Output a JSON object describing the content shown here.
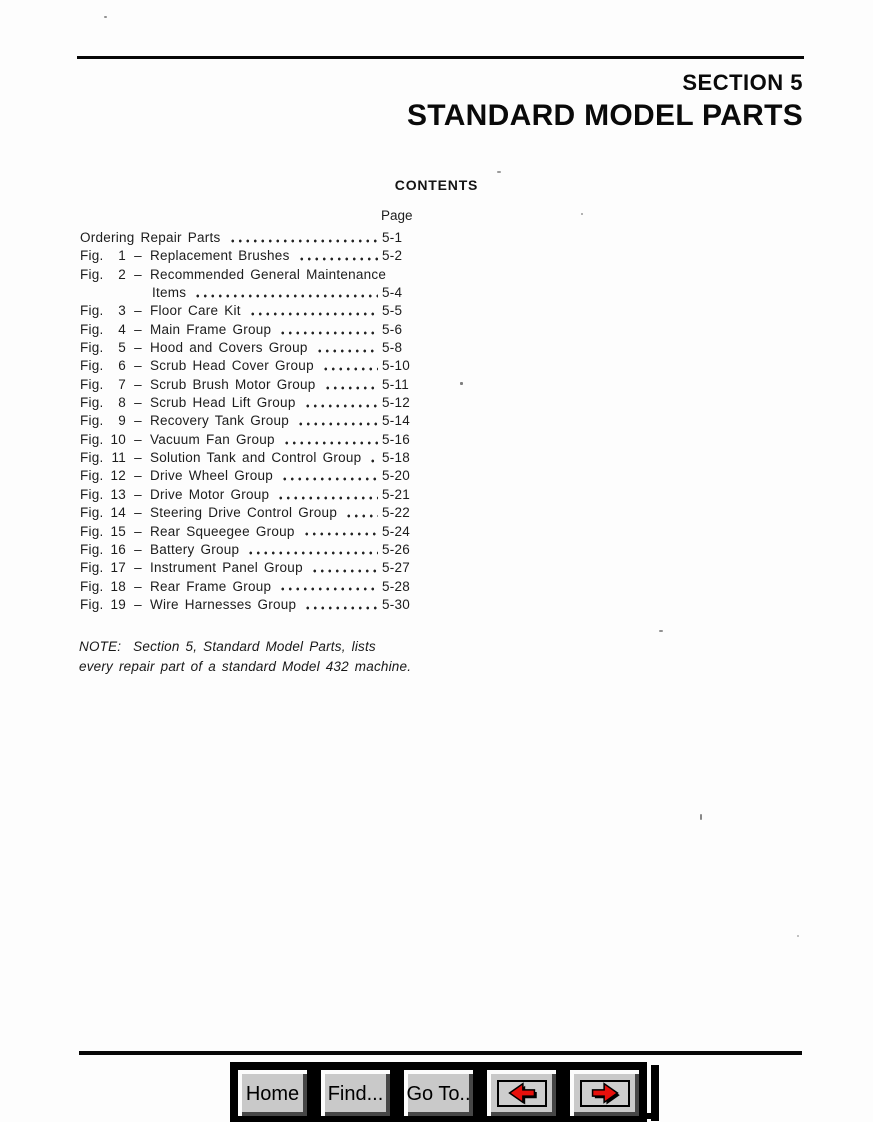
{
  "header": {
    "section": "SECTION 5",
    "title": "STANDARD MODEL PARTS"
  },
  "contents": {
    "heading": "CONTENTS",
    "page_column_label": "Page"
  },
  "toc": {
    "entries": [
      {
        "prefix": "",
        "num": "",
        "dash": "",
        "title": "Ordering Repair Parts",
        "page": "5-1",
        "leader": true,
        "indent": false
      },
      {
        "prefix": "Fig.",
        "num": "1",
        "dash": "–",
        "title": "Replacement Brushes",
        "page": "5-2",
        "leader": true,
        "indent": false
      },
      {
        "prefix": "Fig.",
        "num": "2",
        "dash": "–",
        "title": "Recommended General Maintenance",
        "page": "",
        "leader": false,
        "indent": false
      },
      {
        "prefix": "",
        "num": "",
        "dash": "",
        "title": "Items",
        "page": "5-4",
        "leader": true,
        "indent": true
      },
      {
        "prefix": "Fig.",
        "num": "3",
        "dash": "–",
        "title": "Floor Care Kit",
        "page": "5-5",
        "leader": true,
        "indent": false
      },
      {
        "prefix": "Fig.",
        "num": "4",
        "dash": "–",
        "title": "Main Frame Group",
        "page": "5-6",
        "leader": true,
        "indent": false
      },
      {
        "prefix": "Fig.",
        "num": "5",
        "dash": "–",
        "title": "Hood and Covers Group",
        "page": "5-8",
        "leader": true,
        "indent": false
      },
      {
        "prefix": "Fig.",
        "num": "6",
        "dash": "–",
        "title": "Scrub Head Cover Group",
        "page": "5-10",
        "leader": true,
        "indent": false
      },
      {
        "prefix": "Fig.",
        "num": "7",
        "dash": "–",
        "title": "Scrub Brush Motor Group",
        "page": "5-11",
        "leader": true,
        "indent": false
      },
      {
        "prefix": "Fig.",
        "num": "8",
        "dash": "–",
        "title": "Scrub Head Lift Group",
        "page": "5-12",
        "leader": true,
        "indent": false
      },
      {
        "prefix": "Fig.",
        "num": "9",
        "dash": "–",
        "title": "Recovery Tank Group",
        "page": "5-14",
        "leader": true,
        "indent": false
      },
      {
        "prefix": "Fig.",
        "num": "10",
        "dash": "–",
        "title": "Vacuum Fan Group",
        "page": "5-16",
        "leader": true,
        "indent": false
      },
      {
        "prefix": "Fig.",
        "num": "11",
        "dash": "–",
        "title": "Solution Tank and Control Group",
        "page": "5-18",
        "leader": true,
        "indent": false
      },
      {
        "prefix": "Fig.",
        "num": "12",
        "dash": "–",
        "title": "Drive Wheel Group",
        "page": "5-20",
        "leader": true,
        "indent": false
      },
      {
        "prefix": "Fig.",
        "num": "13",
        "dash": "–",
        "title": "Drive Motor Group",
        "page": "5-21",
        "leader": true,
        "indent": false
      },
      {
        "prefix": "Fig.",
        "num": "14",
        "dash": "–",
        "title": "Steering Drive Control Group",
        "page": "5-22",
        "leader": true,
        "indent": false
      },
      {
        "prefix": "Fig.",
        "num": "15",
        "dash": "–",
        "title": "Rear Squeegee Group",
        "page": "5-24",
        "leader": true,
        "indent": false
      },
      {
        "prefix": "Fig.",
        "num": "16",
        "dash": "–",
        "title": "Battery Group",
        "page": "5-26",
        "leader": true,
        "indent": false
      },
      {
        "prefix": "Fig.",
        "num": "17",
        "dash": "–",
        "title": "Instrument Panel Group",
        "page": "5-27",
        "leader": true,
        "indent": false
      },
      {
        "prefix": "Fig.",
        "num": "18",
        "dash": "–",
        "title": "Rear Frame Group",
        "page": "5-28",
        "leader": true,
        "indent": false
      },
      {
        "prefix": "Fig.",
        "num": "19",
        "dash": "–",
        "title": "Wire Harnesses Group",
        "page": "5-30",
        "leader": true,
        "indent": false
      }
    ]
  },
  "note": {
    "lines": [
      "NOTE:  Section 5, Standard Model Parts, lists",
      "every repair part of a standard Model 432 machine."
    ]
  },
  "toolbar": {
    "buttons": [
      {
        "name": "home-button",
        "type": "text",
        "label": "Home"
      },
      {
        "name": "find-button",
        "type": "text",
        "label": "Find..."
      },
      {
        "name": "goto-button",
        "type": "text",
        "label": "Go To.."
      },
      {
        "name": "prev-page-button",
        "type": "arrow-left",
        "label": "previous page"
      },
      {
        "name": "next-page-button",
        "type": "arrow-right",
        "label": "next page"
      }
    ],
    "arrow_color": "#e8100c"
  },
  "colors": {
    "button_face": "#c9c9c9",
    "toolbar_background": "#000000",
    "text": "#1c1c1c",
    "arrow_red": "#e8100c"
  }
}
